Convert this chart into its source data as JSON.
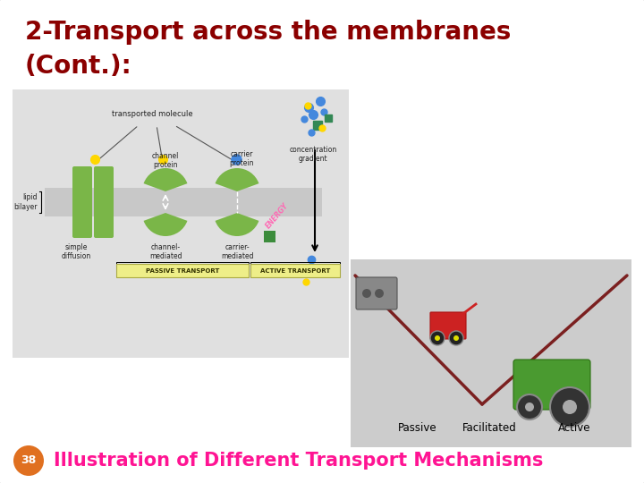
{
  "title_line1": "2-Transport across the membranes",
  "title_line2": "(Cont.):",
  "title_color": "#8B0000",
  "title_fontsize": 20,
  "footer_text": "Illustration of Different Transport Mechanisms",
  "footer_color": "#FF1493",
  "footer_fontsize": 15,
  "slide_bg": "#FFFFFF",
  "slide_border_color": "#BBBBBB",
  "badge_color": "#E07020",
  "badge_text": "38",
  "badge_text_color": "#FFFFFF",
  "left_bg": "#E0E0E0",
  "right_bg": "#CCCCCC",
  "membrane_color": "#BBBBBB",
  "green_protein": "#7AB648",
  "green_dark": "#5A9030",
  "v_line_color": "#7B2020",
  "passive_label": "Passive",
  "facilitated_label": "Facilitated",
  "active_label": "Active"
}
